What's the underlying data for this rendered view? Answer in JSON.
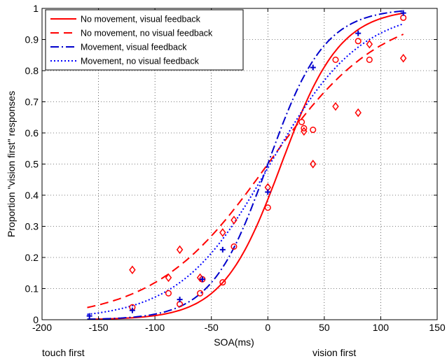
{
  "chart_data": {
    "type": "scatter",
    "title": "",
    "xlabel": "SOA(ms)",
    "ylabel": "Proportion \"vision first\" responses",
    "xlim": [
      -200,
      150
    ],
    "ylim": [
      0,
      1
    ],
    "xticks": [
      -200,
      -150,
      -100,
      -50,
      0,
      50,
      100,
      150
    ],
    "yticks": [
      0,
      0.1,
      0.2,
      0.3,
      0.4,
      0.5,
      0.6,
      0.7,
      0.8,
      0.9,
      1
    ],
    "grid": true,
    "legend_position": "top-left",
    "annotations": {
      "left": "touch first",
      "right": "vision first"
    },
    "series": [
      {
        "name": "No movement, visual feedback",
        "color": "#ff0000",
        "line_style": "solid",
        "marker": "circle",
        "points": [
          [
            -120,
            0.04
          ],
          [
            -88,
            0.085
          ],
          [
            -78,
            0.05
          ],
          [
            -60,
            0.085
          ],
          [
            -58,
            0.13
          ],
          [
            -40,
            0.12
          ],
          [
            -30,
            0.235
          ],
          [
            0,
            0.36
          ],
          [
            30,
            0.635
          ],
          [
            32,
            0.615
          ],
          [
            40,
            0.61
          ],
          [
            60,
            0.835
          ],
          [
            80,
            0.895
          ],
          [
            90,
            0.835
          ],
          [
            120,
            0.97
          ]
        ],
        "fit_mid": 12,
        "fit_scale": 26
      },
      {
        "name": "No movement, no visual feedback",
        "color": "#ff0000",
        "line_style": "dashed",
        "marker": "diamond",
        "points": [
          [
            -120,
            0.16
          ],
          [
            -88,
            0.135
          ],
          [
            -78,
            0.225
          ],
          [
            -60,
            0.135
          ],
          [
            -40,
            0.28
          ],
          [
            -30,
            0.32
          ],
          [
            0,
            0.425
          ],
          [
            32,
            0.605
          ],
          [
            40,
            0.5
          ],
          [
            60,
            0.685
          ],
          [
            80,
            0.665
          ],
          [
            90,
            0.885
          ],
          [
            120,
            0.84
          ]
        ],
        "fit_mid": 0,
        "fit_scale": 50
      },
      {
        "name": "Movement, visual feedback",
        "color": "#0000cc",
        "line_style": "dashdot",
        "marker": "plus",
        "points": [
          [
            -158,
            0.012
          ],
          [
            -120,
            0.03
          ],
          [
            -78,
            0.065
          ],
          [
            -58,
            0.13
          ],
          [
            -40,
            0.225
          ],
          [
            0,
            0.41
          ],
          [
            40,
            0.81
          ],
          [
            80,
            0.92
          ],
          [
            120,
            0.985
          ]
        ],
        "fit_mid": 0,
        "fit_scale": 25
      },
      {
        "name": "Movement, no visual feedback",
        "color": "#0000ff",
        "line_style": "dotted",
        "marker": "none",
        "points": [],
        "fit_mid": 2,
        "fit_scale": 40
      }
    ]
  }
}
